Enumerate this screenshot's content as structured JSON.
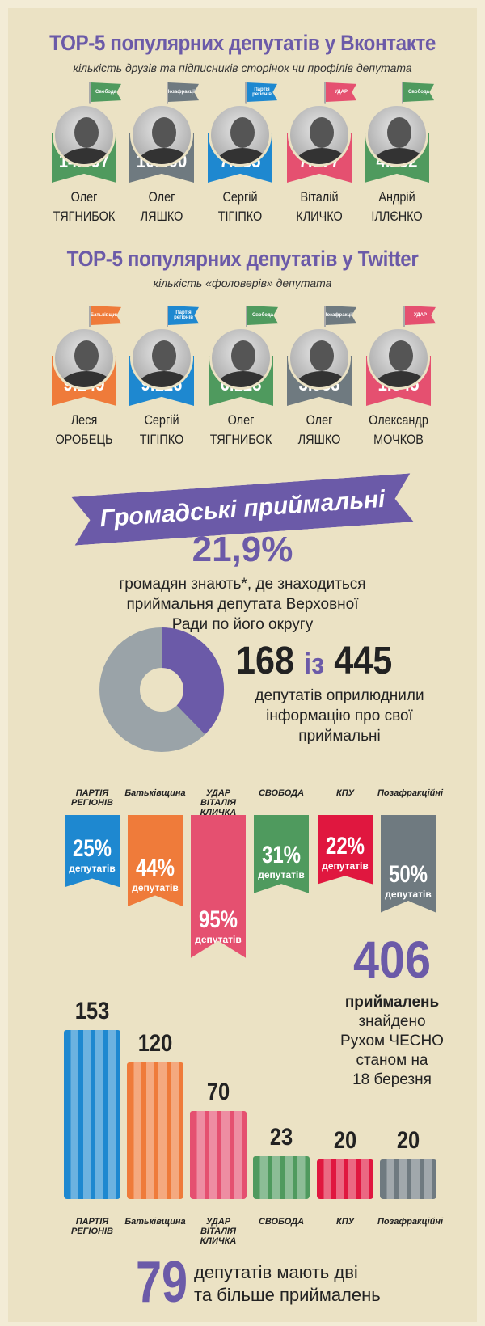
{
  "vk": {
    "title": "TOP-5 популярних депутатів у Вконтакте",
    "subtitle": "кількість друзів та підписників сторінок чи профілів депутата",
    "people": [
      {
        "first": "Олег",
        "last": "ТЯГНИБОК",
        "value": "14.097",
        "party": "Свобода",
        "color": "#4f9a5e"
      },
      {
        "first": "Олег",
        "last": "ЛЯШКО",
        "value": "10.300",
        "party": "Позафракційні",
        "color": "#6f7a80"
      },
      {
        "first": "Сергій",
        "last": "ТІГІПКО",
        "value": "7.935",
        "party": "Партія регіонів",
        "color": "#1e88d0"
      },
      {
        "first": "Віталій",
        "last": "КЛИЧКО",
        "value": "7.877",
        "party": "УДАР",
        "color": "#e55070"
      },
      {
        "first": "Андрій",
        "last": "ІЛЛЄНКО",
        "value": "4.292",
        "party": "Свобода",
        "color": "#4f9a5e"
      }
    ]
  },
  "tw": {
    "title": "TOP-5 популярних депутатів у Twitter",
    "subtitle": "кількість «фоловерів» депутата",
    "people": [
      {
        "first": "Леся",
        "last": "ОРОБЕЦЬ",
        "value": "9.249",
        "party": "Батьківщина",
        "color": "#ef7b3a"
      },
      {
        "first": "Сергій",
        "last": "ТІГІПКО",
        "value": "9.126",
        "party": "Партія регіонів",
        "color": "#1e88d0"
      },
      {
        "first": "Олег",
        "last": "ТЯГНИБОК",
        "value": "6.128",
        "party": "Свобода",
        "color": "#4f9a5e"
      },
      {
        "first": "Олег",
        "last": "ЛЯШКО",
        "value": "3.988",
        "party": "Позафракційні",
        "color": "#6f7a80"
      },
      {
        "first": "Олександр",
        "last": "МОЧКОВ",
        "value": "1.345",
        "party": "УДАР",
        "color": "#e55070"
      }
    ]
  },
  "banner": "Громадські приймальні",
  "know": {
    "value": "21,9%",
    "lines": [
      "громадян знають*, де знаходиться",
      "приймальня депутата Верховної",
      "Ради по його округу"
    ]
  },
  "donut": {
    "part": 168,
    "total": 445,
    "headline_a": "168",
    "headline_mid": "із",
    "headline_b": "445",
    "lines": [
      "депутатів оприлюднили",
      "інформацію про свої",
      "приймальні"
    ],
    "color_part": "#6b5aa8",
    "color_rest": "#9aa3a8"
  },
  "parties": [
    {
      "name": "ПАРТІЯ РЕГІОНІВ",
      "percent": 25,
      "label": "25%",
      "unit": "депутатів",
      "offices": 153,
      "color": "#1e88d0"
    },
    {
      "name": "Батьківщина",
      "percent": 44,
      "label": "44%",
      "unit": "депутатів",
      "offices": 120,
      "color": "#ef7b3a"
    },
    {
      "name": "УДАР ВІТАЛІЯ КЛИЧКА",
      "percent": 95,
      "label": "95%",
      "unit": "депутатів",
      "offices": 70,
      "color": "#e55070"
    },
    {
      "name": "СВОБОДА",
      "percent": 31,
      "label": "31%",
      "unit": "депутатів",
      "offices": 23,
      "color": "#4f9a5e"
    },
    {
      "name": "КПУ",
      "percent": 22,
      "label": "22%",
      "unit": "депутатів",
      "offices": 20,
      "color": "#e0173f"
    },
    {
      "name": "Позафракційні",
      "percent": 50,
      "label": "50%",
      "unit": "депутатів",
      "offices": 20,
      "color": "#6f7a80"
    }
  ],
  "found": {
    "value": "406",
    "bold": "приймалень",
    "lines": [
      "знайдено",
      "Рухом ЧЕСНО",
      "станом на",
      "18 березня"
    ]
  },
  "multi": {
    "value": "79",
    "lines": [
      "депутатів мають дві",
      "та більше приймалень"
    ]
  }
}
